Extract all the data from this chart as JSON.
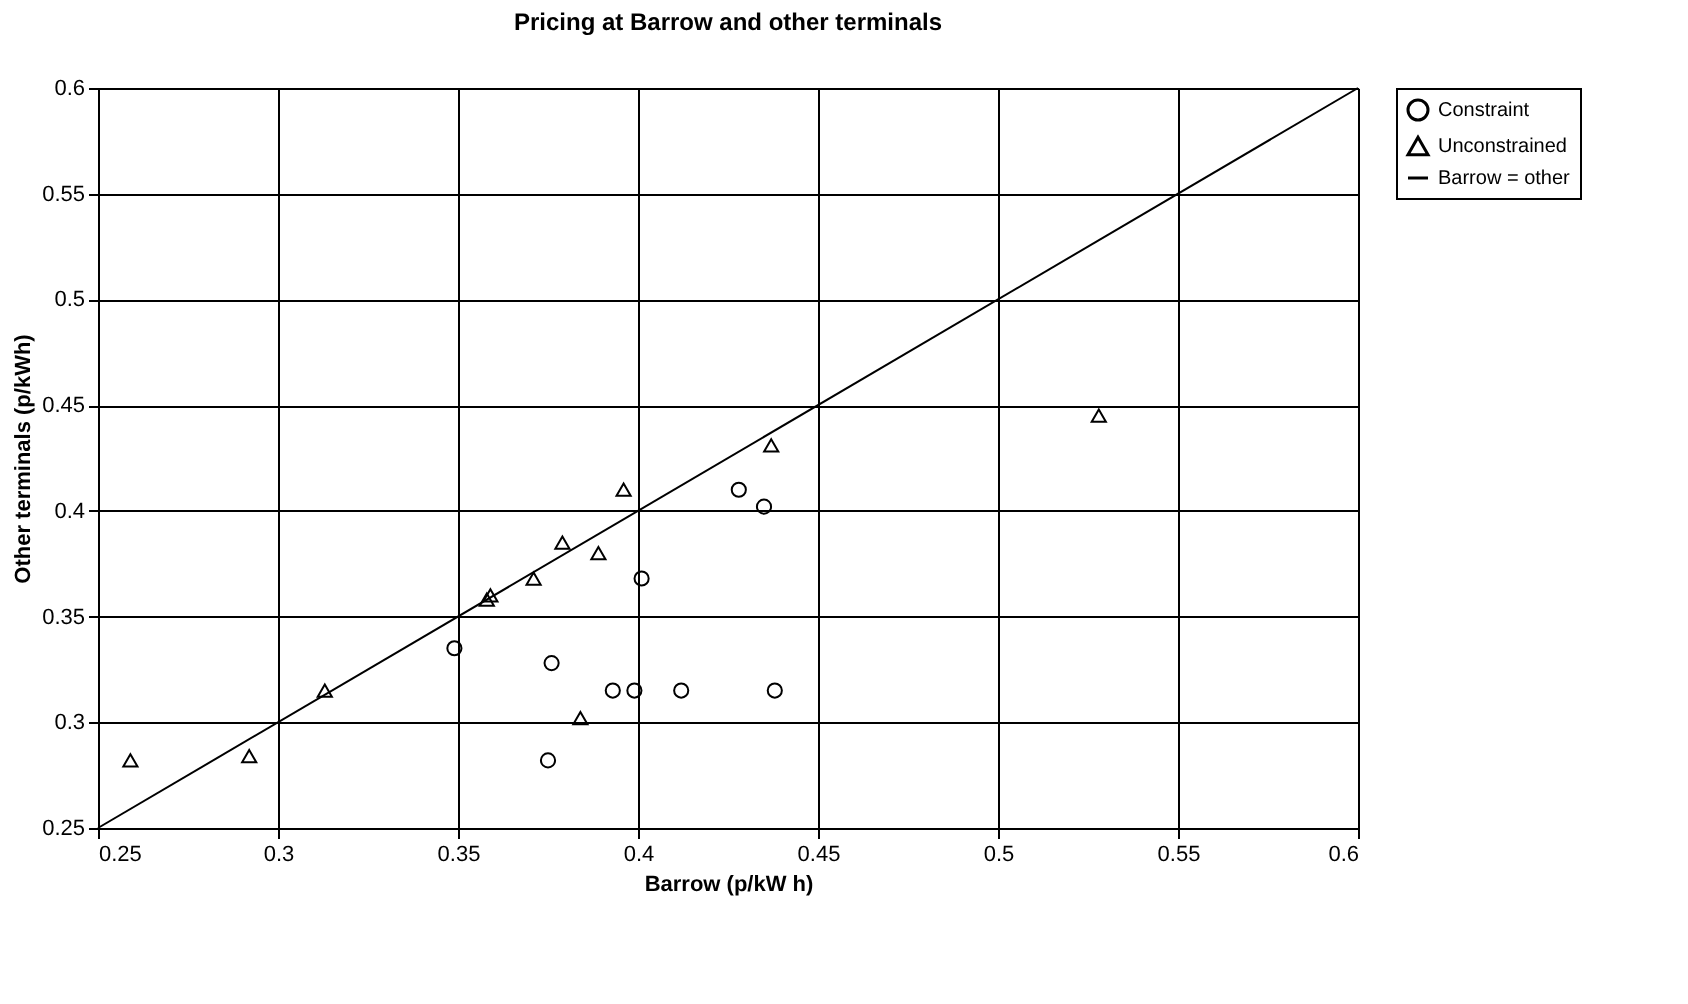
{
  "chart_data": {
    "type": "scatter",
    "title": "Pricing at Barrow and other terminals",
    "xlabel": "Barrow (p/kW h)",
    "ylabel": "Other terminals (p/kWh)",
    "xlim": [
      0.25,
      0.6
    ],
    "xticks": [
      0.25,
      0.3,
      0.35,
      0.4,
      0.45,
      0.5,
      0.55,
      0.6
    ],
    "ylim": [
      0.25,
      0.6
    ],
    "yticks": [
      0.25,
      0.3,
      0.35,
      0.4,
      0.45,
      0.5,
      0.55,
      0.6
    ],
    "grid": true,
    "legend": "right",
    "series": [
      {
        "name": "Constraint",
        "color": "#000000",
        "marker": "circle",
        "x": [
          0.349,
          0.376,
          0.375,
          0.393,
          0.399,
          0.401,
          0.412,
          0.438,
          0.428,
          0.435
        ],
        "values": [
          0.335,
          0.328,
          0.282,
          0.315,
          0.315,
          0.368,
          0.315,
          0.315,
          0.41,
          0.402
        ]
      },
      {
        "name": "Unconstrained",
        "color": "#000000",
        "marker": "triangle",
        "x": [
          0.259,
          0.292,
          0.313,
          0.358,
          0.359,
          0.371,
          0.379,
          0.389,
          0.384,
          0.396,
          0.437,
          0.528
        ],
        "values": [
          0.282,
          0.284,
          0.315,
          0.358,
          0.36,
          0.368,
          0.385,
          0.38,
          0.302,
          0.41,
          0.431,
          0.445
        ]
      },
      {
        "name": "Barrow = other",
        "color": "#000000",
        "type": "line",
        "marker": "none",
        "line_style": "solid",
        "x": [
          0.25,
          0.6
        ],
        "values": [
          0.25,
          0.6
        ]
      }
    ]
  }
}
